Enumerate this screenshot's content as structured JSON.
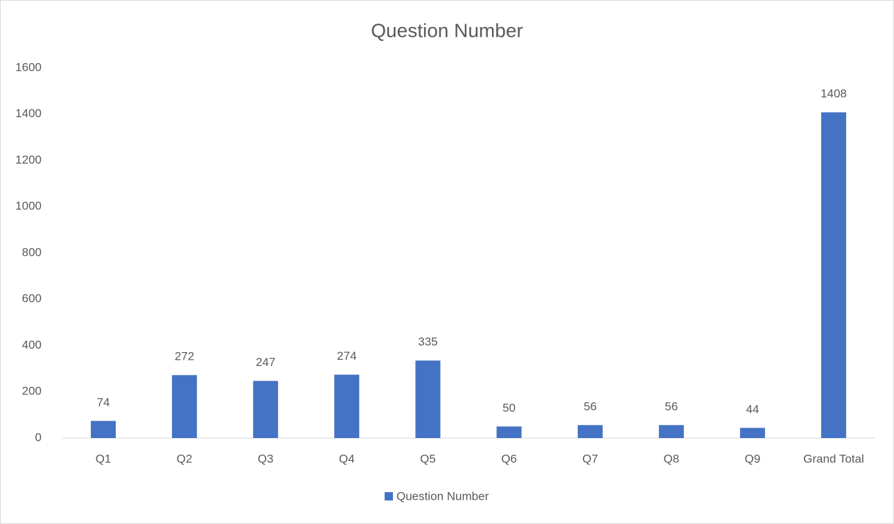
{
  "chart_data": {
    "type": "bar",
    "title": "Question Number",
    "categories": [
      "Q1",
      "Q2",
      "Q3",
      "Q4",
      "Q5",
      "Q6",
      "Q7",
      "Q8",
      "Q9",
      "Grand Total"
    ],
    "series": [
      {
        "name": "Question Number",
        "color": "#4472c4",
        "values": [
          74,
          272,
          247,
          274,
          335,
          50,
          56,
          56,
          44,
          1408
        ]
      }
    ],
    "ylim": [
      0,
      1600
    ],
    "yticks": [
      0,
      200,
      400,
      600,
      800,
      1000,
      1200,
      1400,
      1600
    ],
    "grid": false,
    "legend": "bottom"
  }
}
